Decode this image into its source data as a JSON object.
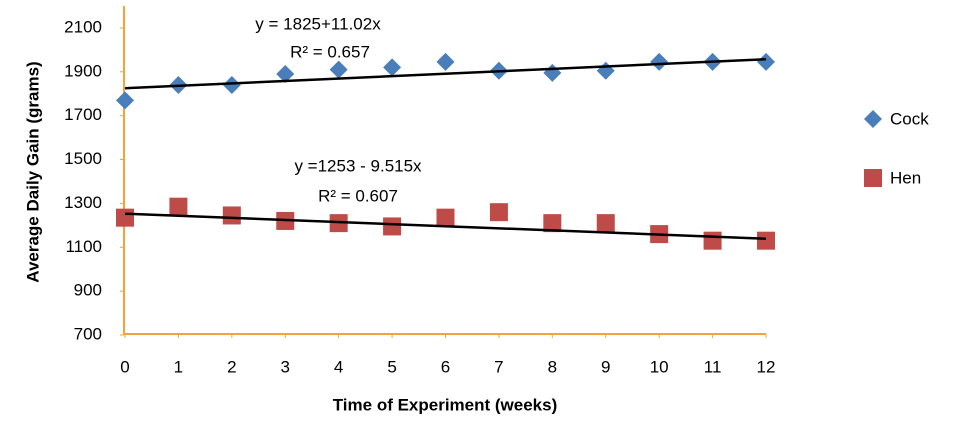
{
  "chart_data": {
    "type": "scatter",
    "xlabel": "Time of Experiment (weeks)",
    "ylabel": "Average Daily Gain (grams)",
    "x": [
      0,
      1,
      2,
      3,
      4,
      5,
      6,
      7,
      8,
      9,
      10,
      11,
      12
    ],
    "xlim": [
      0,
      12
    ],
    "xticks": [
      0,
      1,
      2,
      3,
      4,
      5,
      6,
      7,
      8,
      9,
      10,
      11,
      12
    ],
    "ylim": [
      700,
      2200
    ],
    "yticks": [
      700,
      900,
      1100,
      1300,
      1500,
      1700,
      1900,
      2100
    ],
    "axis_color": "#f2a33a",
    "legend": "right",
    "series": [
      {
        "name": "Cock",
        "color": "#4a7ebb",
        "marker": "diamond",
        "values": [
          1770,
          1840,
          1840,
          1890,
          1910,
          1920,
          1945,
          1905,
          1895,
          1905,
          1945,
          1945,
          1945
        ],
        "trend": {
          "intercept": 1825,
          "slope": 11.02,
          "equation": "y = 1825+11.02x",
          "r2": "R² = 0.657"
        }
      },
      {
        "name": "Hen",
        "color": "#be4b48",
        "marker": "square",
        "values": [
          1235,
          1285,
          1245,
          1220,
          1210,
          1195,
          1235,
          1260,
          1210,
          1210,
          1160,
          1130,
          1130
        ],
        "trend": {
          "intercept": 1253,
          "slope": -9.515,
          "equation": "y =1253 - 9.515x",
          "r2": "R² = 0.607"
        }
      }
    ]
  }
}
